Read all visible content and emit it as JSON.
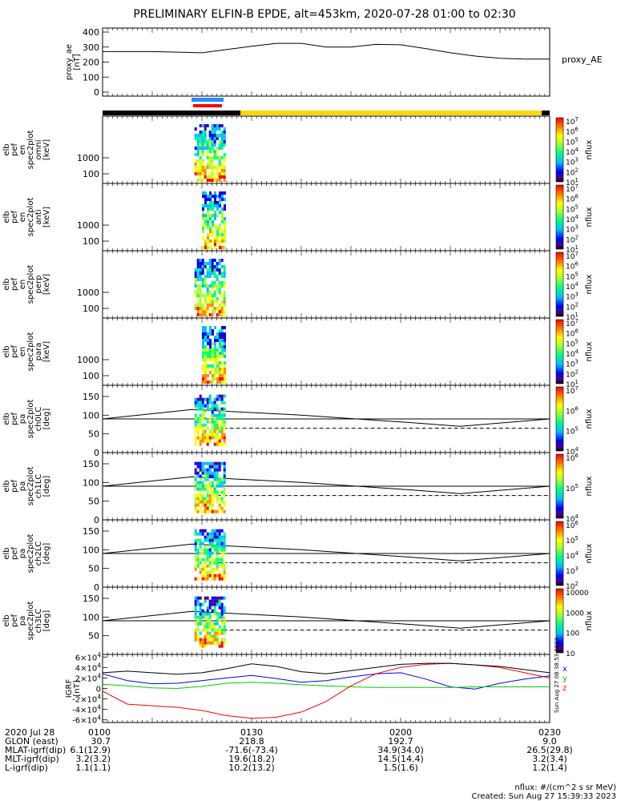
{
  "title": "PRELIMINARY ELFIN-B EPDE, alt=453km, 2020-07-28 01:00 to 02:30",
  "colors": {
    "sunlight_bar": "#ffd700",
    "shadow_bar": "#000000",
    "ae_marker": "#1e90ff",
    "epd_marker": "#ff0000",
    "bx": "#0000ff",
    "by": "#00cc00",
    "bz": "#ff0000",
    "bmag": "#000000"
  },
  "footer": {
    "note": "nflux: #/(cm^2 s sr MeV)",
    "created": "Created: Sun Aug 27 15:39:33 2023",
    "timestamp_vertical": "Sun Aug 27 08:38:53 2023"
  },
  "ephemeris": {
    "rows": [
      {
        "label": "2020 Jul 28",
        "values": [
          "0100",
          "0130",
          "0200",
          "0230"
        ]
      },
      {
        "label": "GLON (east)",
        "values": [
          "30.7",
          "218.8",
          "192.7",
          "9.0"
        ]
      },
      {
        "label": "MLAT-igrf(dip)",
        "values": [
          "6.1(12.9)",
          "-71.6(-73.4)",
          "34.9(34.0)",
          "26.5(29.8)"
        ]
      },
      {
        "label": "MLT-igrf(dip)",
        "values": [
          "3.2(3.2)",
          "19.6(18.2)",
          "14.5(14.4)",
          "3.2(3.4)"
        ]
      },
      {
        "label": "L-igrf(dip)",
        "values": [
          "1.1(1.1)",
          "10.2(13.2)",
          "1.5(1.6)",
          "1.2(1.4)"
        ]
      }
    ]
  },
  "chart_data": [
    {
      "type": "line",
      "id": "proxy_ae",
      "ylabel_lines": [
        "proxy_ae",
        "[nT]"
      ],
      "legend": "proxy_AE",
      "x_minutes": [
        0,
        10,
        20,
        30,
        35,
        40,
        45,
        50,
        55,
        60,
        65,
        70,
        75,
        80,
        85,
        90
      ],
      "values": [
        270,
        270,
        262,
        305,
        325,
        325,
        300,
        300,
        318,
        315,
        290,
        262,
        240,
        225,
        220,
        220
      ],
      "ylim": [
        0,
        400
      ],
      "yticks": [
        "0",
        "100",
        "200",
        "300",
        "400"
      ]
    },
    {
      "type": "heatmap",
      "id": "omni",
      "ylabel_lines": [
        "elb",
        "pef",
        "en",
        "spec2plot",
        "omni",
        "[keV]"
      ],
      "yticks": [
        "100",
        "1000"
      ],
      "scale_label": "nflux",
      "scale_ticks": [
        "10^1",
        "10^2",
        "10^3",
        "10^4",
        "10^5",
        "10^6",
        "10^7"
      ]
    },
    {
      "type": "heatmap",
      "id": "anti",
      "ylabel_lines": [
        "elb",
        "pef",
        "en",
        "spec2plot",
        "anti",
        "[keV]"
      ],
      "yticks": [
        "100",
        "1000"
      ],
      "scale_label": "nflux",
      "scale_ticks": [
        "10^1",
        "10^2",
        "10^3",
        "10^4",
        "10^5",
        "10^6",
        "10^7"
      ]
    },
    {
      "type": "heatmap",
      "id": "perp",
      "ylabel_lines": [
        "elb",
        "pef",
        "en",
        "spec2plot",
        "perp",
        "[keV]"
      ],
      "yticks": [
        "100",
        "1000"
      ],
      "scale_label": "nflux",
      "scale_ticks": [
        "10^1",
        "10^2",
        "10^3",
        "10^4",
        "10^5",
        "10^6",
        "10^7"
      ]
    },
    {
      "type": "heatmap",
      "id": "para",
      "ylabel_lines": [
        "elb",
        "pef",
        "en",
        "spec2plot",
        "para",
        "[keV]"
      ],
      "yticks": [
        "100",
        "1000"
      ],
      "scale_label": "nflux",
      "scale_ticks": [
        "10^1",
        "10^2",
        "10^3",
        "10^4",
        "10^5",
        "10^6",
        "10^7"
      ]
    },
    {
      "type": "heatmap",
      "id": "ch0LC",
      "ylabel_lines": [
        "elb",
        "pef",
        "pa",
        "spec2plot",
        "ch0LC",
        "[deg]"
      ],
      "yticks": [
        "0",
        "50",
        "100",
        "150"
      ],
      "ylim": [
        0,
        180
      ],
      "scale_label": "nflux",
      "scale_ticks": [
        "10^4",
        "10^5",
        "10^6",
        "10^7"
      ]
    },
    {
      "type": "heatmap",
      "id": "ch1LC",
      "ylabel_lines": [
        "elb",
        "pef",
        "pa",
        "spec2plot",
        "ch1LC",
        "[deg]"
      ],
      "yticks": [
        "0",
        "50",
        "100",
        "150"
      ],
      "ylim": [
        0,
        180
      ],
      "scale_label": "nflux",
      "scale_ticks": [
        "10^4",
        "10^5",
        "10^6"
      ]
    },
    {
      "type": "heatmap",
      "id": "ch2LC",
      "ylabel_lines": [
        "elb",
        "pef",
        "pa",
        "spec2plot",
        "ch2LC",
        "[deg]"
      ],
      "yticks": [
        "0",
        "50",
        "100",
        "150"
      ],
      "ylim": [
        0,
        180
      ],
      "scale_label": "nflux",
      "scale_ticks": [
        "10^2",
        "10^3",
        "10^4",
        "10^5",
        "10^6"
      ]
    },
    {
      "type": "heatmap",
      "id": "ch3LC",
      "ylabel_lines": [
        "elb",
        "pef",
        "pa",
        "spec2plot",
        "ch3LC",
        "[deg]"
      ],
      "yticks": [
        "50",
        "100",
        "150"
      ],
      "ylim": [
        0,
        180
      ],
      "scale_label": "nflux",
      "scale_ticks": [
        "10",
        "100",
        "1000",
        "10000"
      ]
    },
    {
      "type": "line",
      "id": "igrf",
      "ylabel_lines": [
        "IGRF",
        "[nT]"
      ],
      "yticks": [
        "-6×10^4",
        "-4×10^4",
        "-2×10^4",
        "0",
        "2×10^4",
        "4×10^4",
        "6×10^4"
      ],
      "ylim": [
        -65000,
        65000
      ],
      "x_minutes": [
        0,
        5,
        10,
        15,
        20,
        25,
        30,
        35,
        40,
        45,
        50,
        55,
        60,
        65,
        70,
        75,
        80,
        85,
        90
      ],
      "series": [
        {
          "key": "x",
          "label": "x",
          "values": [
            28000,
            15000,
            9000,
            10000,
            15000,
            20000,
            25000,
            19000,
            12000,
            15000,
            22000,
            28000,
            30000,
            18000,
            3000,
            -1000,
            10000,
            18000,
            24000
          ]
        },
        {
          "key": "y",
          "label": "y",
          "values": [
            8000,
            5000,
            1000,
            0,
            4000,
            10000,
            12000,
            10000,
            7000,
            5000,
            3000,
            2000,
            2000,
            2000,
            2000,
            3000,
            3000,
            3000,
            3000
          ]
        },
        {
          "key": "z",
          "label": "z",
          "values": [
            -5000,
            -30000,
            -33000,
            -36000,
            -42000,
            -52000,
            -57000,
            -55000,
            -45000,
            -25000,
            5000,
            28000,
            40000,
            46000,
            48000,
            45000,
            40000,
            30000,
            20000
          ]
        },
        {
          "key": "mag",
          "label": "",
          "values": [
            30000,
            33000,
            30000,
            27000,
            30000,
            38000,
            47000,
            42000,
            32000,
            28000,
            34000,
            40000,
            46000,
            48000,
            48000,
            45000,
            42000,
            36000,
            30000
          ]
        }
      ],
      "legend": [
        "x",
        "y",
        "z"
      ]
    }
  ]
}
